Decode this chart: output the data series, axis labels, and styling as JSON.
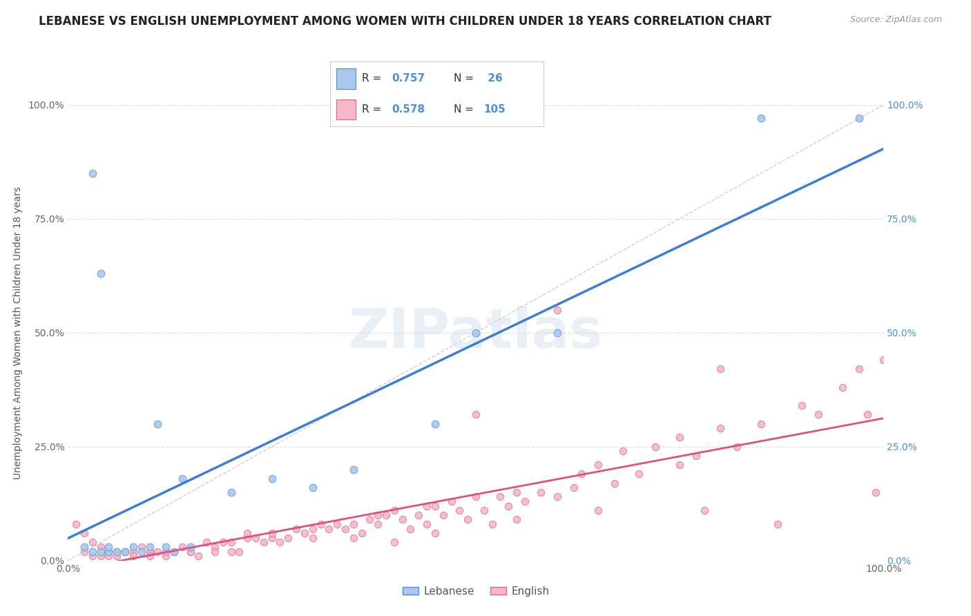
{
  "title": "LEBANESE VS ENGLISH UNEMPLOYMENT AMONG WOMEN WITH CHILDREN UNDER 18 YEARS CORRELATION CHART",
  "source": "Source: ZipAtlas.com",
  "ylabel": "Unemployment Among Women with Children Under 18 years",
  "xlim": [
    0,
    1
  ],
  "ylim": [
    0,
    1
  ],
  "xtick_positions": [
    0.0,
    0.25,
    0.5,
    0.75,
    1.0
  ],
  "xtick_labels": [
    "0.0%",
    "",
    "",
    "",
    "100.0%"
  ],
  "ytick_positions": [
    0.0,
    0.25,
    0.5,
    0.75,
    1.0
  ],
  "ytick_labels": [
    "0.0%",
    "25.0%",
    "50.0%",
    "75.0%",
    "100.0%"
  ],
  "right_ytick_labels": [
    "0.0%",
    "25.0%",
    "50.0%",
    "75.0%",
    "100.0%"
  ],
  "legend_labels": [
    "Lebanese",
    "English"
  ],
  "blue_fill": "#a8c8f0",
  "pink_fill": "#f4b8c8",
  "blue_edge": "#5090d0",
  "pink_edge": "#e06090",
  "blue_line": "#3a7fd5",
  "pink_line": "#e0507a",
  "R_blue": 0.757,
  "N_blue": 26,
  "R_pink": 0.578,
  "N_pink": 105,
  "watermark": "ZIPatlas",
  "blue_scatter_x": [
    0.02,
    0.03,
    0.03,
    0.04,
    0.04,
    0.05,
    0.05,
    0.06,
    0.07,
    0.08,
    0.09,
    0.1,
    0.11,
    0.12,
    0.13,
    0.14,
    0.15,
    0.2,
    0.25,
    0.3,
    0.35,
    0.45,
    0.5,
    0.6,
    0.85,
    0.97
  ],
  "blue_scatter_y": [
    0.03,
    0.02,
    0.85,
    0.02,
    0.63,
    0.02,
    0.03,
    0.02,
    0.02,
    0.03,
    0.02,
    0.03,
    0.3,
    0.03,
    0.02,
    0.18,
    0.03,
    0.15,
    0.18,
    0.16,
    0.2,
    0.3,
    0.5,
    0.5,
    0.97,
    0.97
  ],
  "pink_scatter_x": [
    0.01,
    0.02,
    0.02,
    0.03,
    0.03,
    0.04,
    0.04,
    0.05,
    0.05,
    0.06,
    0.06,
    0.07,
    0.07,
    0.08,
    0.08,
    0.09,
    0.1,
    0.1,
    0.11,
    0.12,
    0.12,
    0.13,
    0.14,
    0.15,
    0.15,
    0.16,
    0.17,
    0.18,
    0.18,
    0.19,
    0.2,
    0.2,
    0.21,
    0.22,
    0.22,
    0.23,
    0.24,
    0.25,
    0.25,
    0.26,
    0.27,
    0.28,
    0.29,
    0.3,
    0.3,
    0.31,
    0.32,
    0.33,
    0.34,
    0.35,
    0.35,
    0.36,
    0.37,
    0.38,
    0.38,
    0.39,
    0.4,
    0.4,
    0.41,
    0.42,
    0.43,
    0.44,
    0.44,
    0.45,
    0.45,
    0.46,
    0.47,
    0.48,
    0.49,
    0.5,
    0.5,
    0.51,
    0.52,
    0.53,
    0.54,
    0.55,
    0.55,
    0.56,
    0.58,
    0.6,
    0.6,
    0.62,
    0.63,
    0.65,
    0.65,
    0.67,
    0.68,
    0.7,
    0.72,
    0.75,
    0.75,
    0.77,
    0.78,
    0.8,
    0.8,
    0.82,
    0.85,
    0.87,
    0.9,
    0.92,
    0.95,
    0.97,
    0.98,
    0.99,
    1.0
  ],
  "pink_scatter_y": [
    0.08,
    0.06,
    0.02,
    0.04,
    0.01,
    0.03,
    0.01,
    0.02,
    0.01,
    0.02,
    0.01,
    0.02,
    0.02,
    0.02,
    0.01,
    0.03,
    0.02,
    0.01,
    0.02,
    0.01,
    0.02,
    0.02,
    0.03,
    0.02,
    0.02,
    0.01,
    0.04,
    0.03,
    0.02,
    0.04,
    0.04,
    0.02,
    0.02,
    0.05,
    0.06,
    0.05,
    0.04,
    0.05,
    0.06,
    0.04,
    0.05,
    0.07,
    0.06,
    0.07,
    0.05,
    0.08,
    0.07,
    0.08,
    0.07,
    0.08,
    0.05,
    0.06,
    0.09,
    0.08,
    0.1,
    0.1,
    0.11,
    0.04,
    0.09,
    0.07,
    0.1,
    0.12,
    0.08,
    0.12,
    0.06,
    0.1,
    0.13,
    0.11,
    0.09,
    0.32,
    0.14,
    0.11,
    0.08,
    0.14,
    0.12,
    0.15,
    0.09,
    0.13,
    0.15,
    0.14,
    0.55,
    0.16,
    0.19,
    0.21,
    0.11,
    0.17,
    0.24,
    0.19,
    0.25,
    0.21,
    0.27,
    0.23,
    0.11,
    0.29,
    0.42,
    0.25,
    0.3,
    0.08,
    0.34,
    0.32,
    0.38,
    0.42,
    0.32,
    0.15,
    0.44
  ],
  "background_color": "#ffffff",
  "grid_color": "#dddddd",
  "title_fontsize": 12,
  "axis_label_fontsize": 10,
  "tick_fontsize": 10
}
